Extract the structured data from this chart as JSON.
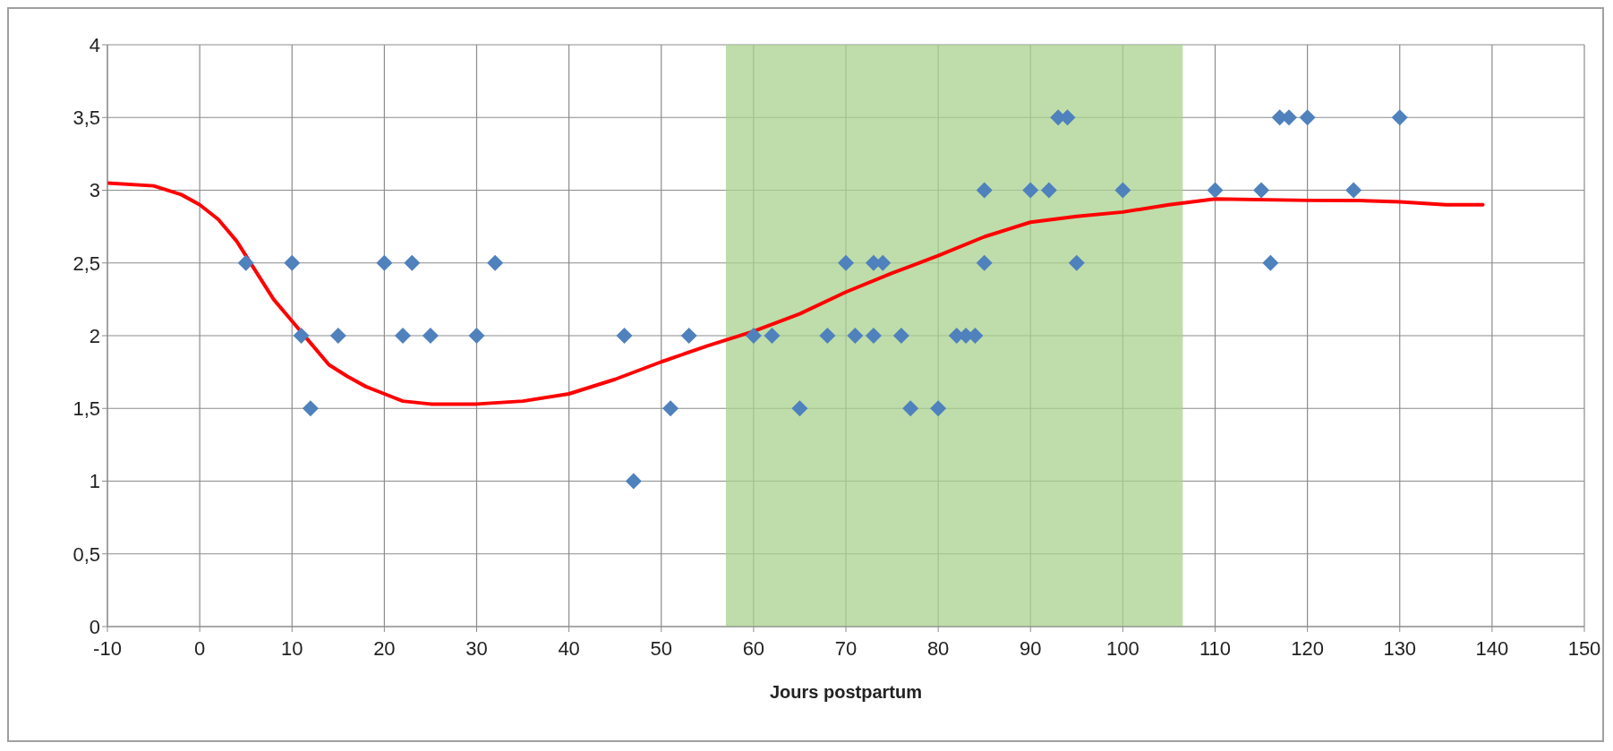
{
  "chart_data": {
    "type": "scatter",
    "xlabel": "Jours postpartum",
    "xlim": [
      -10,
      150
    ],
    "xticks": [
      -10,
      0,
      10,
      20,
      30,
      40,
      50,
      60,
      70,
      80,
      90,
      100,
      110,
      120,
      130,
      140,
      150
    ],
    "ylim": [
      0,
      4
    ],
    "yticks": [
      0,
      {
        "value": 0.5,
        "label": "0,5"
      },
      1,
      {
        "value": 1.5,
        "label": "1,5"
      },
      2,
      {
        "value": 2.5,
        "label": "2,5"
      },
      3,
      {
        "value": 3.5,
        "label": "3,5"
      },
      4
    ],
    "grid": true,
    "legend": false,
    "bands": [
      {
        "axis": "x",
        "from": 57,
        "to": 106.5,
        "color": "#a9d18e"
      }
    ],
    "series": [
      {
        "color": "#4f81bd",
        "marker": "diamond",
        "x": [
          5,
          10,
          11,
          12,
          15,
          20,
          22,
          23,
          25,
          30,
          32,
          46,
          47,
          51,
          53,
          60,
          62,
          65,
          68,
          70,
          71,
          73,
          73,
          74,
          76,
          77,
          80,
          82,
          83,
          84,
          85,
          85,
          90,
          92,
          93,
          94,
          95,
          100,
          110,
          115,
          116,
          117,
          118,
          120,
          125,
          130
        ],
        "values": [
          2.5,
          2.5,
          2,
          1.5,
          2,
          2.5,
          2,
          2.5,
          2,
          2,
          2.5,
          2,
          1,
          1.5,
          2,
          2,
          2,
          1.5,
          2,
          2.5,
          2,
          2.5,
          2,
          2.5,
          2,
          1.5,
          1.5,
          2,
          2,
          2,
          3,
          2.5,
          3,
          3,
          3.5,
          3.5,
          2.5,
          3,
          3,
          3,
          2.5,
          3.5,
          3.5,
          3.5,
          3,
          3.5
        ]
      },
      {
        "type": "line",
        "color": "#ff0000",
        "marker": "none",
        "line_style": "solid",
        "x": [
          -10,
          -5,
          -2,
          0,
          2,
          4,
          6,
          8,
          10,
          12,
          14,
          16,
          18,
          20,
          22,
          25,
          30,
          35,
          40,
          45,
          50,
          55,
          60,
          65,
          70,
          75,
          80,
          85,
          90,
          95,
          100,
          105,
          110,
          120,
          125,
          130,
          135,
          139
        ],
        "values": [
          3.05,
          3.03,
          2.97,
          2.9,
          2.8,
          2.65,
          2.45,
          2.25,
          2.1,
          1.95,
          1.8,
          1.72,
          1.65,
          1.6,
          1.55,
          1.53,
          1.53,
          1.55,
          1.6,
          1.7,
          1.82,
          1.93,
          2.03,
          2.15,
          2.3,
          2.43,
          2.55,
          2.68,
          2.78,
          2.82,
          2.85,
          2.9,
          2.94,
          2.93,
          2.93,
          2.92,
          2.9,
          2.9
        ]
      }
    ]
  }
}
